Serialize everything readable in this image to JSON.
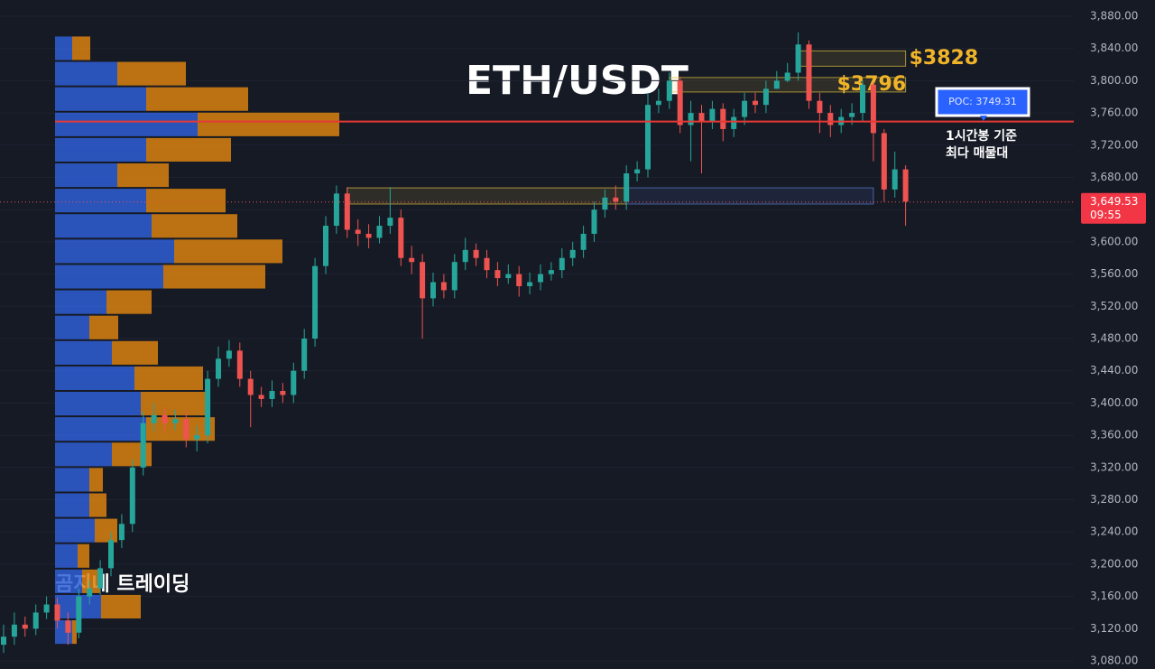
{
  "chart_data": {
    "type": "candlestick",
    "title": "ETH/USDT",
    "watermark": "곰지네 트레이딩",
    "up_color": "#26a69a",
    "down_color": "#ef5350",
    "ylim": [
      3080,
      3880
    ],
    "yticks": [
      {
        "value": 3080,
        "label": "3,080.00"
      },
      {
        "value": 3120,
        "label": "3,120.00"
      },
      {
        "value": 3160,
        "label": "3,160.00"
      },
      {
        "value": 3200,
        "label": "3,200.00"
      },
      {
        "value": 3240,
        "label": "3,240.00"
      },
      {
        "value": 3280,
        "label": "3,280.00"
      },
      {
        "value": 3320,
        "label": "3,320.00"
      },
      {
        "value": 3360,
        "label": "3,360.00"
      },
      {
        "value": 3400,
        "label": "3,400.00"
      },
      {
        "value": 3440,
        "label": "3,440.00"
      },
      {
        "value": 3480,
        "label": "3,480.00"
      },
      {
        "value": 3520,
        "label": "3,520.00"
      },
      {
        "value": 3560,
        "label": "3,560.00"
      },
      {
        "value": 3600,
        "label": "3,600.00"
      },
      {
        "value": 3640,
        "label": "3,640.00"
      },
      {
        "value": 3680,
        "label": "3,680.00"
      },
      {
        "value": 3720,
        "label": "3,720.00"
      },
      {
        "value": 3760,
        "label": "3,760.00"
      },
      {
        "value": 3800,
        "label": "3,800.00"
      },
      {
        "value": 3840,
        "label": "3,840.00"
      },
      {
        "value": 3880,
        "label": "3,880.00"
      }
    ],
    "open": [
      3100,
      3110,
      3125,
      3120,
      3140,
      3150,
      3130,
      3115,
      3160,
      3170,
      3195,
      3230,
      3250,
      3320,
      3375,
      3385,
      3375,
      3380,
      3355,
      3360,
      3430,
      3455,
      3465,
      3430,
      3410,
      3405,
      3415,
      3410,
      3440,
      3480,
      3570,
      3620,
      3660,
      3615,
      3610,
      3605,
      3620,
      3630,
      3580,
      3575,
      3530,
      3550,
      3540,
      3575,
      3590,
      3580,
      3565,
      3555,
      3560,
      3545,
      3550,
      3560,
      3565,
      3580,
      3590,
      3610,
      3640,
      3655,
      3650,
      3685,
      3690,
      3770,
      3775,
      3800,
      3745,
      3760,
      3750,
      3765,
      3740,
      3755,
      3775,
      3770,
      3790,
      3800,
      3810,
      3845,
      3775,
      3760,
      3745,
      3755,
      3760,
      3795,
      3735,
      3665,
      3690
    ],
    "high": [
      3125,
      3140,
      3135,
      3150,
      3160,
      3158,
      3140,
      3170,
      3180,
      3205,
      3240,
      3262,
      3330,
      3390,
      3400,
      3395,
      3392,
      3390,
      3372,
      3440,
      3470,
      3478,
      3475,
      3440,
      3420,
      3428,
      3425,
      3450,
      3492,
      3580,
      3632,
      3670,
      3668,
      3628,
      3622,
      3632,
      3668,
      3640,
      3595,
      3585,
      3562,
      3560,
      3585,
      3605,
      3598,
      3590,
      3575,
      3572,
      3570,
      3562,
      3572,
      3575,
      3592,
      3600,
      3620,
      3650,
      3665,
      3670,
      3695,
      3700,
      3785,
      3790,
      3810,
      3805,
      3775,
      3770,
      3775,
      3772,
      3765,
      3785,
      3785,
      3800,
      3812,
      3822,
      3860,
      3850,
      3785,
      3770,
      3765,
      3772,
      3800,
      3798,
      3740,
      3712,
      3695
    ],
    "low": [
      3090,
      3100,
      3110,
      3112,
      3132,
      3120,
      3100,
      3108,
      3150,
      3162,
      3185,
      3220,
      3240,
      3310,
      3365,
      3362,
      3366,
      3345,
      3340,
      3350,
      3420,
      3445,
      3420,
      3370,
      3395,
      3395,
      3400,
      3400,
      3430,
      3470,
      3560,
      3610,
      3605,
      3595,
      3592,
      3598,
      3610,
      3570,
      3560,
      3480,
      3520,
      3530,
      3530,
      3565,
      3570,
      3555,
      3545,
      3548,
      3532,
      3535,
      3540,
      3552,
      3555,
      3570,
      3580,
      3600,
      3630,
      3640,
      3640,
      3675,
      3680,
      3760,
      3765,
      3735,
      3700,
      3685,
      3740,
      3725,
      3730,
      3745,
      3760,
      3760,
      3790,
      3798,
      3800,
      3765,
      3735,
      3730,
      3735,
      3745,
      3750,
      3700,
      3650,
      3655,
      3620
    ],
    "close": [
      3110,
      3125,
      3120,
      3140,
      3150,
      3130,
      3115,
      3160,
      3170,
      3195,
      3230,
      3250,
      3320,
      3375,
      3385,
      3375,
      3380,
      3355,
      3360,
      3430,
      3455,
      3465,
      3430,
      3410,
      3405,
      3415,
      3410,
      3440,
      3480,
      3570,
      3620,
      3660,
      3615,
      3610,
      3605,
      3620,
      3630,
      3580,
      3575,
      3530,
      3550,
      3540,
      3575,
      3590,
      3580,
      3565,
      3555,
      3560,
      3545,
      3550,
      3560,
      3565,
      3580,
      3590,
      3610,
      3640,
      3655,
      3650,
      3685,
      3690,
      3770,
      3775,
      3800,
      3745,
      3760,
      3750,
      3765,
      3740,
      3755,
      3775,
      3770,
      3790,
      3800,
      3810,
      3845,
      3775,
      3760,
      3745,
      3755,
      3760,
      3795,
      3735,
      3665,
      3690,
      3650
    ],
    "volume_profile": {
      "bins": [
        3100,
        3131.5,
        3163,
        3194.5,
        3226,
        3257.5,
        3289,
        3320.5,
        3352,
        3383.5,
        3415,
        3446.5,
        3478,
        3509.5,
        3541,
        3572.5,
        3604,
        3635.5,
        3667,
        3698.5,
        3730,
        3761.5,
        3793,
        3824.5,
        3856
      ],
      "xlim": [
        0,
        320
      ],
      "series": [
        {
          "color": "#2f5fd6",
          "values": [
            19,
            51,
            30,
            25,
            44,
            38,
            38,
            63,
            101,
            95,
            88,
            63,
            38,
            57,
            120,
            132,
            107,
            101,
            69,
            101,
            158,
            101,
            69,
            19
          ]
        },
        {
          "color": "#d9820f",
          "values": [
            5,
            44,
            20,
            13,
            25,
            19,
            15,
            44,
            76,
            75,
            76,
            51,
            32,
            50,
            113,
            120,
            95,
            88,
            57,
            94,
            157,
            113,
            76,
            20
          ]
        }
      ]
    },
    "zones": [
      {
        "from_index": 32,
        "to_index": 58,
        "low": 3647,
        "high": 3667,
        "color": "#e0c040"
      },
      {
        "from_index": 58,
        "to_index": 81,
        "low": 3647,
        "high": 3667,
        "color": "#5b7fd6"
      },
      {
        "from_index": 62,
        "to_index": 84,
        "low": 3786,
        "high": 3804,
        "color": "#e0c040",
        "label": "$3796"
      },
      {
        "from_index": 74,
        "to_index": 84,
        "low": 3818,
        "high": 3837,
        "color": "#e0c040",
        "label": "$3828"
      }
    ],
    "poc": {
      "value": 3749.31,
      "label": "POC: 3749.31",
      "note": [
        "1시간봉 기준",
        "최다 매물대"
      ]
    },
    "last_price": {
      "value": 3649.53,
      "label": "3,649.53",
      "countdown": "09:55"
    }
  }
}
